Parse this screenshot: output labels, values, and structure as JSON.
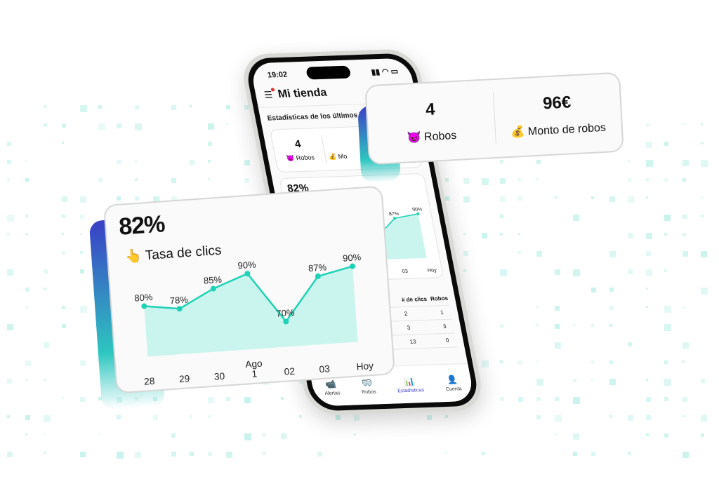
{
  "phone": {
    "time": "19:02",
    "title": "Mi tienda",
    "subtitle": "Estadísticas de los últimos 7 d",
    "robos_count": "4",
    "robos_label": "😈 Robos",
    "monto_label": "💰 Mo",
    "chart_big": "82%",
    "table": {
      "headers": [
        "# de clics",
        "Robos"
      ],
      "rows": [
        [
          "2",
          "1"
        ],
        [
          "3",
          "3"
        ],
        [
          "13",
          "0"
        ]
      ]
    },
    "nav": [
      {
        "icon": "camera-icon",
        "glyph": "📹",
        "label": "Alertas"
      },
      {
        "icon": "mask-icon",
        "glyph": "🥽",
        "label": "Robos"
      },
      {
        "icon": "bar-chart-icon",
        "glyph": "📊",
        "label": "Estadísticas",
        "active": true
      },
      {
        "icon": "user-gear-icon",
        "glyph": "👤",
        "label": "Cuenta"
      }
    ]
  },
  "stats_card": {
    "robos_count": "4",
    "robos_label": "😈 Robos",
    "monto_value": "96€",
    "monto_label": "💰 Monto de robos"
  },
  "chart_card": {
    "value": "82%",
    "label": "👆 Tasa de clics"
  },
  "colors": {
    "accent": "#1fd1b5",
    "fill": "#c9f5ee",
    "active_nav": "#3a3fc6"
  },
  "chart_data": {
    "type": "area",
    "categories": [
      "28",
      "29",
      "30",
      "Ago 1",
      "02",
      "03",
      "Hoy"
    ],
    "values": [
      80,
      78,
      85,
      90,
      70,
      87,
      90
    ],
    "labels": [
      "80%",
      "78%",
      "85%",
      "90%",
      "70%",
      "87%",
      "90%"
    ],
    "unit": "%"
  }
}
